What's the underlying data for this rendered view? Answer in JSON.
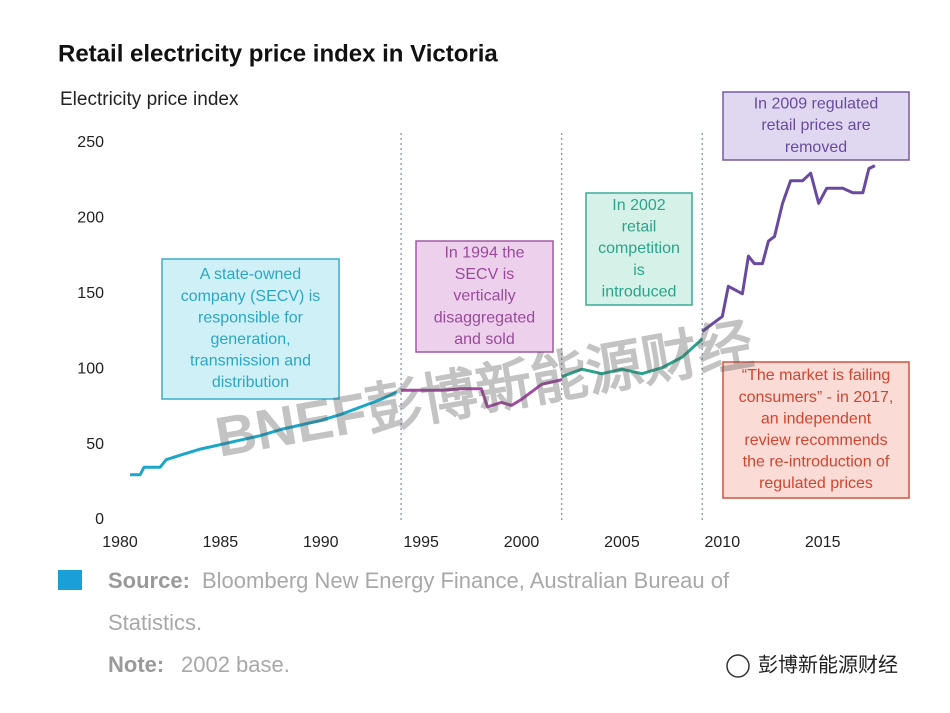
{
  "chart_data": {
    "type": "line",
    "title": "Retail electricity price index in Victoria",
    "y_label": "Electricity price index",
    "xlim": [
      1980,
      2019
    ],
    "ylim": [
      0,
      250
    ],
    "xticks": [
      1980,
      1985,
      1990,
      1995,
      2000,
      2005,
      2010,
      2015
    ],
    "yticks": [
      0,
      50,
      100,
      150,
      200,
      250
    ],
    "grid": false,
    "reference_lines": [
      1994,
      2002,
      2009
    ],
    "series": [
      {
        "color": "#1aa7c9",
        "x": [
          1980.5,
          1981,
          1981.2,
          1982,
          1982.3,
          1983,
          1984,
          1985,
          1986,
          1987,
          1988,
          1989,
          1990,
          1991,
          1992,
          1993,
          1993.8
        ],
        "values": [
          30,
          30,
          35,
          35,
          40,
          43,
          47,
          50,
          53,
          56,
          60,
          63,
          66,
          70,
          75,
          80,
          85
        ]
      },
      {
        "color": "#a34ba0",
        "x": [
          1994,
          1995,
          1996,
          1997,
          1998,
          1998.3,
          1999,
          1999.5,
          2000,
          2000.5,
          2001,
          2002
        ],
        "values": [
          86,
          86,
          86,
          87,
          87,
          75,
          78,
          76,
          80,
          85,
          90,
          93
        ]
      },
      {
        "color": "#2aa48d",
        "x": [
          2002,
          2003,
          2004,
          2005,
          2006,
          2007,
          2008,
          2009
        ],
        "values": [
          95,
          100,
          97,
          100,
          97,
          101,
          108,
          120
        ]
      },
      {
        "color": "#6a4aa0",
        "x": [
          2009,
          2009.5,
          2010,
          2010.3,
          2011,
          2011.3,
          2011.6,
          2012,
          2012.3,
          2012.6,
          2013,
          2013.4,
          2014,
          2014.4,
          2014.8,
          2015.2,
          2016,
          2016.5,
          2017,
          2017.3,
          2017.6
        ],
        "values": [
          125,
          130,
          135,
          155,
          150,
          175,
          170,
          170,
          185,
          188,
          210,
          225,
          225,
          230,
          210,
          220,
          220,
          217,
          217,
          233,
          235
        ]
      }
    ],
    "annotations": [
      {
        "lines": [
          "A state-owned",
          "company (SECV) is",
          "responsible for",
          "generation,",
          "transmission and",
          "distribution"
        ],
        "color": "#2aa6c6",
        "fill": "#cdeff7"
      },
      {
        "lines": [
          "In 1994 the",
          "SECV is",
          "vertically",
          "disaggregated",
          "and sold"
        ],
        "color": "#9b4a9b",
        "fill": "#ebcdeb"
      },
      {
        "lines": [
          "In 2002",
          "retail",
          "competition",
          "is",
          "introduced"
        ],
        "color": "#2aa48d",
        "fill": "#d3f0e6"
      },
      {
        "lines": [
          "In 2009 regulated",
          "retail prices are",
          "removed"
        ],
        "color": "#6a4aa0",
        "fill": "#ded5ef"
      },
      {
        "lines": [
          "“The market is failing",
          "consumers” - in 2017,",
          "an independent",
          "review recommends",
          "the re-introduction of",
          "regulated prices"
        ],
        "color": "#d2452f",
        "fill": "#fbd9d3"
      }
    ],
    "watermark": "BNEF彭博新能源财经",
    "source_label": "Source:",
    "source_lines": [
      "Bloomberg New Energy Finance, Australian Bureau of",
      "Statistics."
    ],
    "note_label": "Note:",
    "note": "2002 base.",
    "logo": "彭博新能源财经"
  }
}
